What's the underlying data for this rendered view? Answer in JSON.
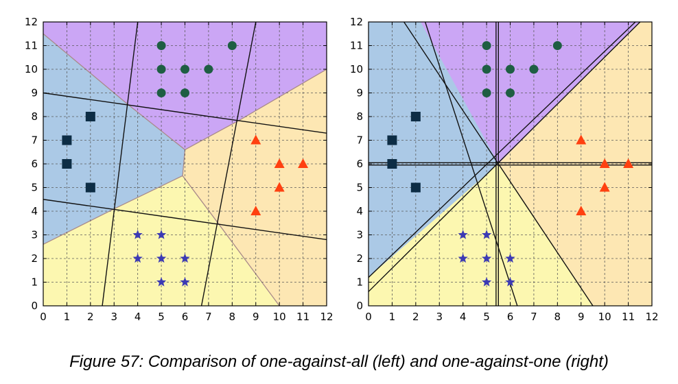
{
  "caption": "Figure 57: Comparison of one-against-all (left) and one-against-one (right)",
  "chart_data": [
    {
      "type": "scatter",
      "title": "",
      "xlabel": "",
      "ylabel": "",
      "xlim": [
        0,
        12
      ],
      "ylim": [
        0,
        12
      ],
      "grid": true,
      "x_ticks": [
        "0",
        "1",
        "2",
        "3",
        "4",
        "5",
        "6",
        "7",
        "8",
        "9",
        "10",
        "11",
        "12"
      ],
      "y_ticks": [
        "0",
        "1",
        "2",
        "3",
        "4",
        "5",
        "6",
        "7",
        "8",
        "9",
        "10",
        "11",
        "12"
      ],
      "regions": [
        {
          "color": "#cba6f5",
          "polygon": [
            [
              0,
              11.5
            ],
            [
              0,
              12
            ],
            [
              12,
              12
            ],
            [
              12,
              10
            ],
            [
              8.4,
              7.9
            ],
            [
              6,
              6.6
            ],
            [
              3.6,
              8.5
            ]
          ]
        },
        {
          "color": "#abc9e6",
          "polygon": [
            [
              0,
              2.6
            ],
            [
              0,
              11.5
            ],
            [
              3.6,
              8.5
            ],
            [
              6,
              6.6
            ],
            [
              5.9,
              5.5
            ],
            [
              3,
              4.1
            ]
          ]
        },
        {
          "color": "#fde7b3",
          "polygon": [
            [
              6,
              6.6
            ],
            [
              8.4,
              7.9
            ],
            [
              12,
              10
            ],
            [
              12,
              0
            ],
            [
              10,
              0
            ],
            [
              7.4,
              3.5
            ],
            [
              5.9,
              5.5
            ]
          ]
        },
        {
          "color": "#fcf7b0",
          "polygon": [
            [
              0,
              0
            ],
            [
              0,
              2.6
            ],
            [
              3,
              4.1
            ],
            [
              5.9,
              5.5
            ],
            [
              7.4,
              3.5
            ],
            [
              10,
              0
            ]
          ]
        }
      ],
      "region_borders": [
        [
          [
            0,
            11.5
          ],
          [
            3.6,
            8.5
          ],
          [
            6,
            6.6
          ],
          [
            8.4,
            7.9
          ],
          [
            12,
            10
          ]
        ],
        [
          [
            0,
            2.6
          ],
          [
            3,
            4.1
          ],
          [
            5.9,
            5.5
          ],
          [
            7.4,
            3.5
          ],
          [
            10,
            0
          ]
        ],
        [
          [
            6,
            6.6
          ],
          [
            5.9,
            5.5
          ]
        ]
      ],
      "lines": [
        [
          [
            2.5,
            0
          ],
          [
            4,
            12
          ]
        ],
        [
          [
            6.7,
            0
          ],
          [
            9,
            12
          ]
        ],
        [
          [
            0,
            9
          ],
          [
            12,
            7.3
          ]
        ],
        [
          [
            0,
            4.5
          ],
          [
            12,
            2.8
          ]
        ]
      ],
      "series": [
        {
          "marker": "square",
          "color": "#0d2d45",
          "points": [
            [
              1,
              7
            ],
            [
              1,
              6
            ],
            [
              2,
              8
            ],
            [
              2,
              5
            ]
          ]
        },
        {
          "marker": "circle",
          "color": "#1e5e43",
          "points": [
            [
              5,
              11
            ],
            [
              8,
              11
            ],
            [
              5,
              10
            ],
            [
              6,
              10
            ],
            [
              7,
              10
            ],
            [
              5,
              9
            ],
            [
              6,
              9
            ]
          ]
        },
        {
          "marker": "triangle",
          "color": "#ff4010",
          "points": [
            [
              9,
              7
            ],
            [
              10,
              6
            ],
            [
              11,
              6
            ],
            [
              10,
              5
            ],
            [
              9,
              4
            ]
          ]
        },
        {
          "marker": "star",
          "color": "#3c3ab4",
          "points": [
            [
              4,
              3
            ],
            [
              5,
              3
            ],
            [
              4,
              2
            ],
            [
              5,
              2
            ],
            [
              6,
              2
            ],
            [
              5,
              1
            ],
            [
              6,
              1
            ]
          ]
        }
      ]
    },
    {
      "type": "scatter",
      "title": "",
      "xlabel": "",
      "ylabel": "",
      "xlim": [
        0,
        12
      ],
      "ylim": [
        0,
        12
      ],
      "grid": true,
      "x_ticks": [
        "0",
        "1",
        "2",
        "3",
        "4",
        "5",
        "6",
        "7",
        "8",
        "9",
        "10",
        "11",
        "12"
      ],
      "y_ticks": [
        "0",
        "1",
        "2",
        "3",
        "4",
        "5",
        "6",
        "7",
        "8",
        "9",
        "10",
        "11",
        "12"
      ],
      "regions": [
        {
          "color": "#cba6f5",
          "polygon": [
            [
              2.2,
              12
            ],
            [
              11.5,
              12
            ],
            [
              5.5,
              6
            ]
          ]
        },
        {
          "color": "#abc9e6",
          "polygon": [
            [
              0,
              1.2
            ],
            [
              0,
              12
            ],
            [
              2.2,
              12
            ],
            [
              5.5,
              6
            ]
          ]
        },
        {
          "color": "#fde7b3",
          "polygon": [
            [
              5.5,
              6
            ],
            [
              11.5,
              12
            ],
            [
              12,
              12
            ],
            [
              12,
              0
            ],
            [
              9.5,
              0
            ]
          ]
        },
        {
          "color": "#fcf7b0",
          "polygon": [
            [
              0,
              0
            ],
            [
              0,
              1.2
            ],
            [
              5.5,
              6
            ],
            [
              9.5,
              0
            ]
          ]
        }
      ],
      "region_borders": [],
      "lines": [
        [
          [
            5.4,
            0
          ],
          [
            5.4,
            12
          ]
        ],
        [
          [
            5.5,
            0
          ],
          [
            5.5,
            12
          ]
        ],
        [
          [
            0,
            6.05
          ],
          [
            12,
            6.05
          ]
        ],
        [
          [
            0,
            5.95
          ],
          [
            12,
            5.95
          ]
        ],
        [
          [
            0,
            1.2
          ],
          [
            11.3,
            12
          ]
        ],
        [
          [
            0,
            0.6
          ],
          [
            11.5,
            12
          ]
        ],
        [
          [
            1.5,
            12
          ],
          [
            9.5,
            0
          ]
        ],
        [
          [
            2.4,
            12
          ],
          [
            6.3,
            0
          ]
        ]
      ],
      "series": [
        {
          "marker": "square",
          "color": "#0d2d45",
          "points": [
            [
              1,
              7
            ],
            [
              1,
              6
            ],
            [
              2,
              8
            ],
            [
              2,
              5
            ]
          ]
        },
        {
          "marker": "circle",
          "color": "#1e5e43",
          "points": [
            [
              5,
              11
            ],
            [
              8,
              11
            ],
            [
              5,
              10
            ],
            [
              6,
              10
            ],
            [
              7,
              10
            ],
            [
              5,
              9
            ],
            [
              6,
              9
            ]
          ]
        },
        {
          "marker": "triangle",
          "color": "#ff4010",
          "points": [
            [
              9,
              7
            ],
            [
              10,
              6
            ],
            [
              11,
              6
            ],
            [
              10,
              5
            ],
            [
              9,
              4
            ]
          ]
        },
        {
          "marker": "star",
          "color": "#3c3ab4",
          "points": [
            [
              4,
              3
            ],
            [
              5,
              3
            ],
            [
              4,
              2
            ],
            [
              5,
              2
            ],
            [
              6,
              2
            ],
            [
              5,
              1
            ],
            [
              6,
              1
            ]
          ]
        }
      ]
    }
  ]
}
